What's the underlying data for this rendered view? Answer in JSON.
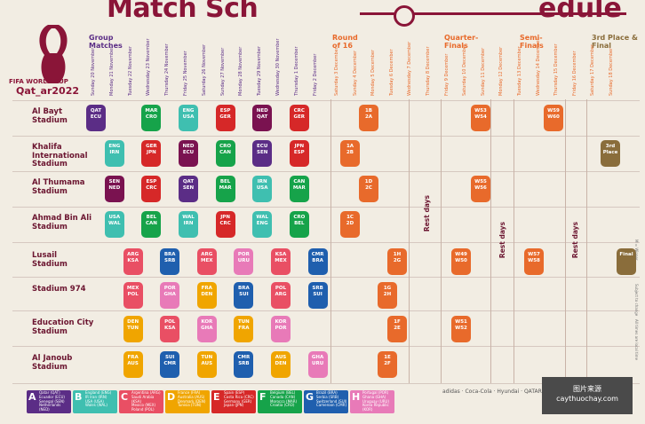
{
  "header": {
    "title_a": "Match Sch",
    "title_b": "edule"
  },
  "logo": {
    "line1": "FIFA WORLD CUP",
    "line2": "Qat_ar2022"
  },
  "stages": {
    "group": "Group Matches",
    "r16": "Round of 16",
    "qf": "Quarter-Finals",
    "sf": "Semi-Finals",
    "final": "3rd Place & Final"
  },
  "group_dates": [
    "Sunday 20 November",
    "Monday 21 November",
    "Tuesday 22 November",
    "Wednesday 23 November",
    "Thursday 24 November",
    "Friday 25 November",
    "Saturday 26 November",
    "Sunday 27 November",
    "Monday 28 November",
    "Tuesday 29 November",
    "Wednesday 30 November",
    "Thursday 1 December",
    "Friday 2 December"
  ],
  "ko_dates": [
    "Saturday 3 December",
    "Sunday 4 December",
    "Monday 5 December",
    "Tuesday 6 December",
    "Wednesday 7 December",
    "Thursday 8 December",
    "Friday 9 December",
    "Saturday 10 December",
    "Sunday 11 December",
    "Monday 12 December",
    "Tuesday 13 December",
    "Wednesday 14 December",
    "Thursday 15 December",
    "Friday 16 December",
    "Saturday 17 December",
    "Sunday 18 December"
  ],
  "stadiums": [
    "Al Bayt Stadium",
    "Khalifa International Stadium",
    "Al Thumama Stadium",
    "Ahmad Bin Ali Stadium",
    "Lusail Stadium",
    "Stadium 974",
    "Education City Stadium",
    "Al Janoub Stadium"
  ],
  "rest_label": "Rest days",
  "matches": [
    {
      "row": 0,
      "col": 0,
      "a": "QAT",
      "b": "ECU",
      "color": "#5b2d86"
    },
    {
      "row": 0,
      "col": 3,
      "a": "MAR",
      "b": "CRO",
      "color": "#16a34a"
    },
    {
      "row": 0,
      "col": 5,
      "a": "ENG",
      "b": "USA",
      "color": "#3fbfb0"
    },
    {
      "row": 0,
      "col": 7,
      "a": "ESP",
      "b": "GER",
      "color": "#d62828"
    },
    {
      "row": 0,
      "col": 9,
      "a": "NED",
      "b": "QAT",
      "color": "#7a1250"
    },
    {
      "row": 0,
      "col": 11,
      "a": "CRC",
      "b": "GER",
      "color": "#d62828"
    },
    {
      "row": 1,
      "col": 1,
      "a": "ENG",
      "b": "IRN",
      "color": "#3fbfb0"
    },
    {
      "row": 1,
      "col": 3,
      "a": "GER",
      "b": "JPN",
      "color": "#d62828"
    },
    {
      "row": 1,
      "col": 5,
      "a": "NED",
      "b": "ECU",
      "color": "#7a1250"
    },
    {
      "row": 1,
      "col": 7,
      "a": "CRO",
      "b": "CAN",
      "color": "#16a34a"
    },
    {
      "row": 1,
      "col": 9,
      "a": "ECU",
      "b": "SEN",
      "color": "#5b2d86"
    },
    {
      "row": 1,
      "col": 11,
      "a": "JPN",
      "b": "ESP",
      "color": "#d62828"
    },
    {
      "row": 2,
      "col": 1,
      "a": "SEN",
      "b": "NED",
      "color": "#7a1250"
    },
    {
      "row": 2,
      "col": 3,
      "a": "ESP",
      "b": "CRC",
      "color": "#d62828"
    },
    {
      "row": 2,
      "col": 5,
      "a": "QAT",
      "b": "SEN",
      "color": "#5b2d86"
    },
    {
      "row": 2,
      "col": 7,
      "a": "BEL",
      "b": "MAR",
      "color": "#16a34a"
    },
    {
      "row": 2,
      "col": 9,
      "a": "IRN",
      "b": "USA",
      "color": "#3fbfb0"
    },
    {
      "row": 2,
      "col": 11,
      "a": "CAN",
      "b": "MAR",
      "color": "#16a34a"
    },
    {
      "row": 3,
      "col": 1,
      "a": "USA",
      "b": "WAL",
      "color": "#3fbfb0"
    },
    {
      "row": 3,
      "col": 3,
      "a": "BEL",
      "b": "CAN",
      "color": "#16a34a"
    },
    {
      "row": 3,
      "col": 5,
      "a": "WAL",
      "b": "IRN",
      "color": "#3fbfb0"
    },
    {
      "row": 3,
      "col": 7,
      "a": "JPN",
      "b": "CRC",
      "color": "#d62828"
    },
    {
      "row": 3,
      "col": 9,
      "a": "WAL",
      "b": "ENG",
      "color": "#3fbfb0"
    },
    {
      "row": 3,
      "col": 11,
      "a": "CRO",
      "b": "BEL",
      "color": "#16a34a"
    },
    {
      "row": 4,
      "col": 2,
      "a": "ARG",
      "b": "KSA",
      "color": "#e94f64"
    },
    {
      "row": 4,
      "col": 4,
      "a": "BRA",
      "b": "SRB",
      "color": "#1f5fae"
    },
    {
      "row": 4,
      "col": 6,
      "a": "ARG",
      "b": "MEX",
      "color": "#e94f64"
    },
    {
      "row": 4,
      "col": 8,
      "a": "POR",
      "b": "URU",
      "color": "#e87ab8"
    },
    {
      "row": 4,
      "col": 10,
      "a": "KSA",
      "b": "MEX",
      "color": "#e94f64"
    },
    {
      "row": 4,
      "col": 12,
      "a": "CMR",
      "b": "BRA",
      "color": "#1f5fae"
    },
    {
      "row": 5,
      "col": 2,
      "a": "MEX",
      "b": "POL",
      "color": "#e94f64"
    },
    {
      "row": 5,
      "col": 4,
      "a": "POR",
      "b": "GHA",
      "color": "#e87ab8"
    },
    {
      "row": 5,
      "col": 6,
      "a": "FRA",
      "b": "DEN",
      "color": "#f0a500"
    },
    {
      "row": 5,
      "col": 8,
      "a": "BRA",
      "b": "SUI",
      "color": "#1f5fae"
    },
    {
      "row": 5,
      "col": 10,
      "a": "POL",
      "b": "ARG",
      "color": "#e94f64"
    },
    {
      "row": 5,
      "col": 12,
      "a": "SRB",
      "b": "SUI",
      "color": "#1f5fae"
    },
    {
      "row": 6,
      "col": 2,
      "a": "DEN",
      "b": "TUN",
      "color": "#f0a500"
    },
    {
      "row": 6,
      "col": 4,
      "a": "POL",
      "b": "KSA",
      "color": "#e94f64"
    },
    {
      "row": 6,
      "col": 6,
      "a": "KOR",
      "b": "GHA",
      "color": "#e87ab8"
    },
    {
      "row": 6,
      "col": 8,
      "a": "TUN",
      "b": "FRA",
      "color": "#f0a500"
    },
    {
      "row": 6,
      "col": 10,
      "a": "KOR",
      "b": "POR",
      "color": "#e87ab8"
    },
    {
      "row": 7,
      "col": 2,
      "a": "FRA",
      "b": "AUS",
      "color": "#f0a500"
    },
    {
      "row": 7,
      "col": 4,
      "a": "SUI",
      "b": "CMR",
      "color": "#1f5fae"
    },
    {
      "row": 7,
      "col": 6,
      "a": "TUN",
      "b": "AUS",
      "color": "#f0a500"
    },
    {
      "row": 7,
      "col": 8,
      "a": "CMR",
      "b": "SRB",
      "color": "#1f5fae"
    },
    {
      "row": 7,
      "col": 10,
      "a": "AUS",
      "b": "DEN",
      "color": "#f0a500"
    },
    {
      "row": 7,
      "col": 12,
      "a": "GHA",
      "b": "URU",
      "color": "#e87ab8"
    }
  ],
  "ko_matches": [
    {
      "row": 0,
      "x": 404,
      "a": "1B",
      "b": "2A",
      "color": "#e86a2b"
    },
    {
      "row": 1,
      "x": 383,
      "a": "1A",
      "b": "2B",
      "color": "#e86a2b"
    },
    {
      "row": 2,
      "x": 404,
      "a": "1D",
      "b": "2C",
      "color": "#e86a2b"
    },
    {
      "row": 3,
      "x": 383,
      "a": "1C",
      "b": "2D",
      "color": "#e86a2b"
    },
    {
      "row": 4,
      "x": 436,
      "a": "1H",
      "b": "2G",
      "color": "#e86a2b"
    },
    {
      "row": 5,
      "x": 425,
      "a": "1G",
      "b": "2H",
      "color": "#e86a2b"
    },
    {
      "row": 6,
      "x": 436,
      "a": "1F",
      "b": "2E",
      "color": "#e86a2b"
    },
    {
      "row": 7,
      "x": 425,
      "a": "1E",
      "b": "2F",
      "color": "#e86a2b"
    },
    {
      "row": 0,
      "x": 530,
      "a": "W53",
      "b": "W54",
      "color": "#e86a2b"
    },
    {
      "row": 2,
      "x": 530,
      "a": "W55",
      "b": "W56",
      "color": "#e86a2b"
    },
    {
      "row": 4,
      "x": 508,
      "a": "W49",
      "b": "W50",
      "color": "#e86a2b"
    },
    {
      "row": 6,
      "x": 508,
      "a": "W51",
      "b": "W52",
      "color": "#e86a2b"
    },
    {
      "row": 0,
      "x": 612,
      "a": "W59",
      "b": "W60",
      "color": "#e86a2b"
    },
    {
      "row": 4,
      "x": 590,
      "a": "W57",
      "b": "W58",
      "color": "#e86a2b"
    },
    {
      "row": 1,
      "x": 676,
      "a": "3rd",
      "b": "Place",
      "color": "#8a6d3b"
    },
    {
      "row": 4,
      "x": 694,
      "a": "Final",
      "b": "",
      "color": "#8a6d3b"
    }
  ],
  "legend": [
    {
      "letter": "A",
      "color": "#5b2d86",
      "lines": [
        "Qatar (QAT)",
        "Ecuador (ECU)",
        "Senegal (SEN)",
        "Netherlands (NED)"
      ]
    },
    {
      "letter": "B",
      "color": "#3fbfb0",
      "lines": [
        "England (ENG)",
        "IR Iran (IRN)",
        "USA (USA)",
        "Wales (WAL)"
      ]
    },
    {
      "letter": "C",
      "color": "#e94f64",
      "lines": [
        "Argentina (ARG)",
        "Saudi Arabia (KSA)",
        "Mexico (MEX)",
        "Poland (POL)"
      ]
    },
    {
      "letter": "D",
      "color": "#f0a500",
      "lines": [
        "France (FRA)",
        "Australia (AUS)",
        "Denmark (DEN)",
        "Tunisia (TUN)"
      ]
    },
    {
      "letter": "E",
      "color": "#d62828",
      "lines": [
        "Spain (ESP)",
        "Costa Rica (CRC)",
        "Germany (GER)",
        "Japan (JPN)"
      ]
    },
    {
      "letter": "F",
      "color": "#16a34a",
      "lines": [
        "Belgium (BEL)",
        "Canada (CAN)",
        "Morocco (MAR)",
        "Croatia (CRO)"
      ]
    },
    {
      "letter": "G",
      "color": "#1f5fae",
      "lines": [
        "Brazil (BRA)",
        "Serbia (SRB)",
        "Switzerland (SUI)",
        "Cameroon (CMR)"
      ]
    },
    {
      "letter": "H",
      "color": "#e87ab8",
      "lines": [
        "Portugal (POR)",
        "Ghana (GHA)",
        "Uruguay (URU)",
        "Korea Republic (KOR)"
      ]
    }
  ],
  "sponsors": "adidas · Coca-Cola · Hyundai · QATAR · VISA",
  "watermark": {
    "line1": "图片来源",
    "line2": "caythuochay.com"
  },
  "side_notes": [
    "M = Winner",
    "Subject to change",
    "All times are local time"
  ]
}
